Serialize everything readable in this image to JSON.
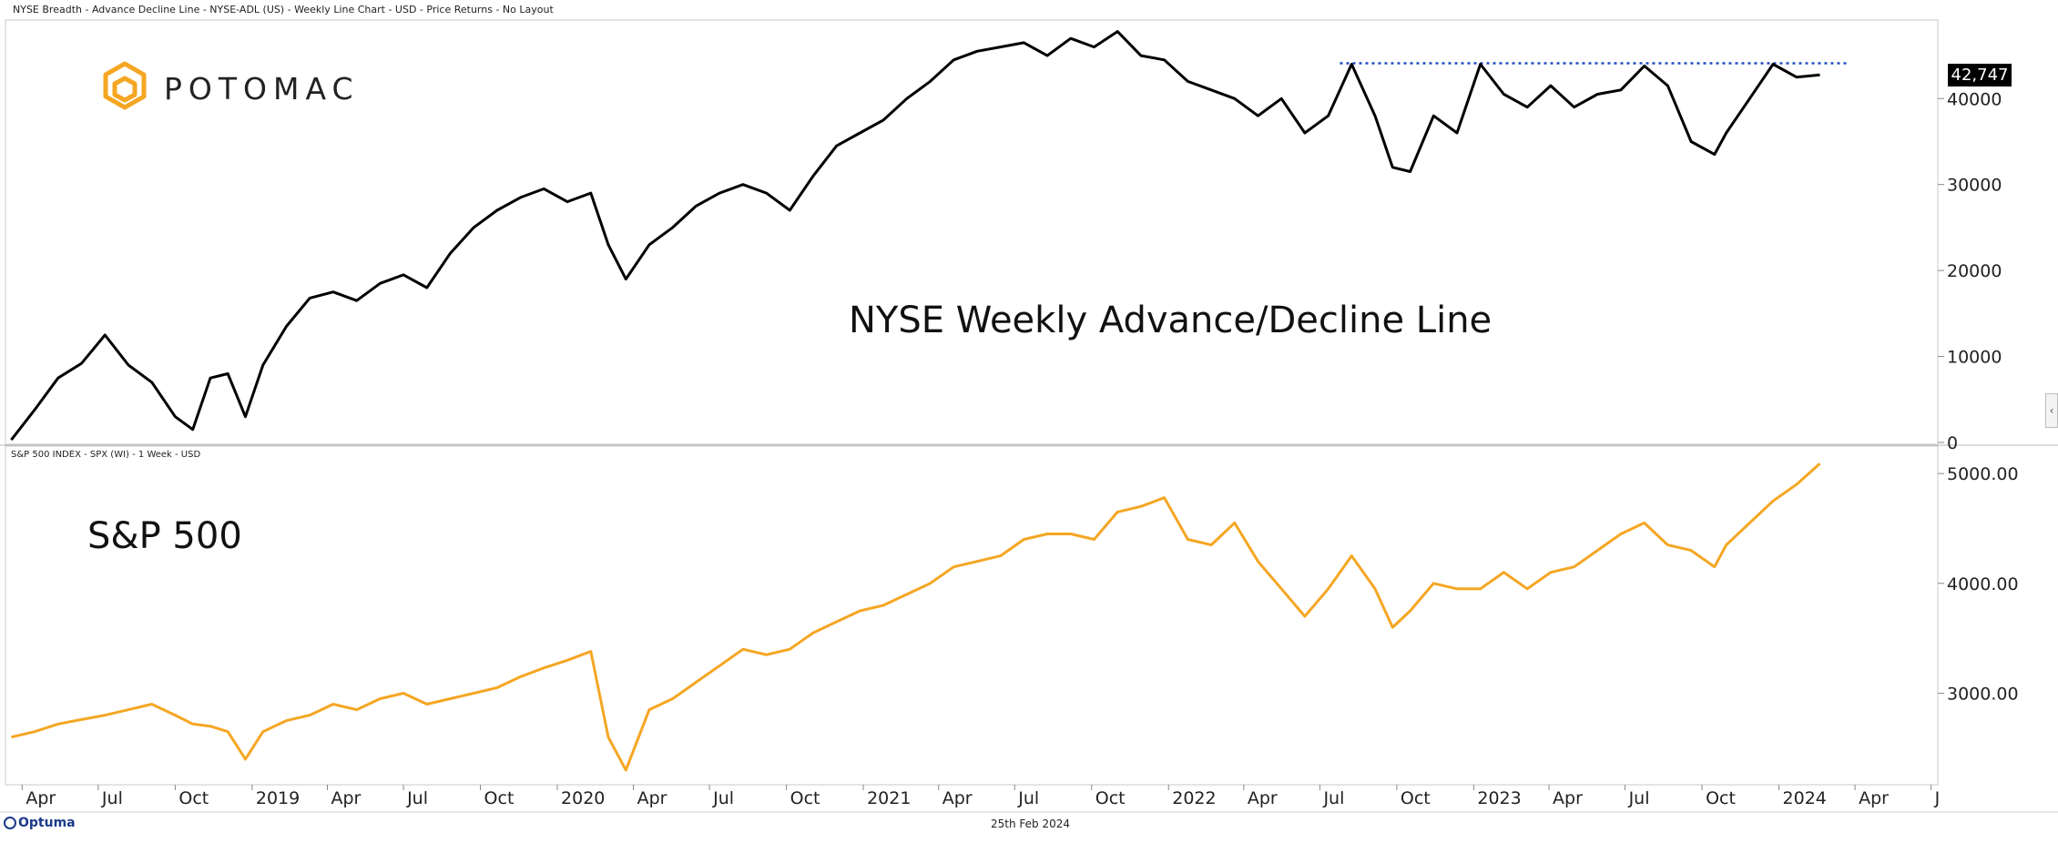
{
  "header": {
    "top_title": "NYSE Breadth - Advance Decline Line - NYSE-ADL (US) - Weekly Line Chart - USD - Price Returns - No Layout",
    "bottom_title": "S&P 500 INDEX - SPX (WI) - 1 Week - USD"
  },
  "brand": {
    "name": "POTOMAC",
    "logo_icon": "potomac-hexagon-logo",
    "color": "#F5A623"
  },
  "footer": {
    "date": "25th Feb 2024",
    "vendor": "Optuma"
  },
  "colors": {
    "adl_line": "#000000",
    "spx_line": "#F5A623",
    "resistance": "#1f4fbf",
    "badge_bg": "#000000"
  },
  "chart_data": [
    {
      "type": "line",
      "title": "NYSE Weekly Advance/Decline Line",
      "last_value_label": "42,747",
      "ylim": [
        0,
        48500
      ],
      "y_ticks": [
        "0",
        "10000",
        "20000",
        "30000",
        "40000"
      ],
      "y_tick_values": [
        0,
        10000,
        20000,
        30000,
        40000
      ],
      "resistance": {
        "value": 44100,
        "from": "2022-07-25",
        "to": "2024-03-25",
        "style": "dotted"
      },
      "x": [
        "2018-03-19",
        "2018-04-16",
        "2018-05-14",
        "2018-06-11",
        "2018-07-09",
        "2018-08-06",
        "2018-09-03",
        "2018-10-01",
        "2018-10-22",
        "2018-11-12",
        "2018-12-03",
        "2018-12-24",
        "2019-01-14",
        "2019-02-11",
        "2019-03-11",
        "2019-04-08",
        "2019-05-06",
        "2019-06-03",
        "2019-07-01",
        "2019-07-29",
        "2019-08-26",
        "2019-09-23",
        "2019-10-21",
        "2019-11-18",
        "2019-12-16",
        "2020-01-13",
        "2020-02-10",
        "2020-03-02",
        "2020-03-23",
        "2020-04-20",
        "2020-05-18",
        "2020-06-15",
        "2020-07-13",
        "2020-08-10",
        "2020-09-07",
        "2020-10-05",
        "2020-11-02",
        "2020-11-30",
        "2020-12-28",
        "2021-01-25",
        "2021-02-22",
        "2021-03-22",
        "2021-04-19",
        "2021-05-17",
        "2021-06-14",
        "2021-07-12",
        "2021-08-09",
        "2021-09-06",
        "2021-10-04",
        "2021-11-01",
        "2021-11-29",
        "2021-12-27",
        "2022-01-24",
        "2022-02-21",
        "2022-03-21",
        "2022-04-18",
        "2022-05-16",
        "2022-06-13",
        "2022-07-11",
        "2022-08-08",
        "2022-09-05",
        "2022-09-26",
        "2022-10-17",
        "2022-11-14",
        "2022-12-12",
        "2023-01-09",
        "2023-02-06",
        "2023-03-06",
        "2023-04-03",
        "2023-05-01",
        "2023-05-29",
        "2023-06-26",
        "2023-07-24",
        "2023-08-21",
        "2023-09-18",
        "2023-10-16",
        "2023-10-30",
        "2023-11-27",
        "2023-12-25",
        "2024-01-22",
        "2024-02-19"
      ],
      "y": [
        300,
        3800,
        7500,
        9200,
        12500,
        9000,
        7000,
        3000,
        1500,
        7500,
        8000,
        3000,
        9000,
        13500,
        16800,
        17500,
        16500,
        18500,
        19500,
        18000,
        22000,
        25000,
        27000,
        28500,
        29500,
        28000,
        29000,
        23000,
        19000,
        23000,
        25000,
        27500,
        29000,
        30000,
        29000,
        27000,
        31000,
        34500,
        36000,
        37500,
        40000,
        42000,
        44500,
        45500,
        46000,
        46500,
        45000,
        47000,
        46000,
        47800,
        45000,
        44500,
        42000,
        41000,
        40000,
        38000,
        40000,
        36000,
        38000,
        44000,
        38000,
        32000,
        31500,
        38000,
        36000,
        44000,
        40500,
        39000,
        41500,
        39000,
        40500,
        41000,
        43800,
        41500,
        35000,
        33500,
        36000,
        40000,
        44000,
        42500,
        42747
      ]
    },
    {
      "type": "line",
      "title": "S&P 500",
      "ylim": [
        2200,
        5200
      ],
      "y_ticks": [
        "3000.00",
        "4000.00",
        "5000.00"
      ],
      "y_tick_values": [
        3000,
        4000,
        5000
      ],
      "x": [
        "2018-03-19",
        "2018-04-16",
        "2018-05-14",
        "2018-06-11",
        "2018-07-09",
        "2018-08-06",
        "2018-09-03",
        "2018-10-01",
        "2018-10-22",
        "2018-11-12",
        "2018-12-03",
        "2018-12-24",
        "2019-01-14",
        "2019-02-11",
        "2019-03-11",
        "2019-04-08",
        "2019-05-06",
        "2019-06-03",
        "2019-07-01",
        "2019-07-29",
        "2019-08-26",
        "2019-09-23",
        "2019-10-21",
        "2019-11-18",
        "2019-12-16",
        "2020-01-13",
        "2020-02-10",
        "2020-03-02",
        "2020-03-23",
        "2020-04-20",
        "2020-05-18",
        "2020-06-15",
        "2020-07-13",
        "2020-08-10",
        "2020-09-07",
        "2020-10-05",
        "2020-11-02",
        "2020-11-30",
        "2020-12-28",
        "2021-01-25",
        "2021-02-22",
        "2021-03-22",
        "2021-04-19",
        "2021-05-17",
        "2021-06-14",
        "2021-07-12",
        "2021-08-09",
        "2021-09-06",
        "2021-10-04",
        "2021-11-01",
        "2021-11-29",
        "2021-12-27",
        "2022-01-24",
        "2022-02-21",
        "2022-03-21",
        "2022-04-18",
        "2022-05-16",
        "2022-06-13",
        "2022-07-11",
        "2022-08-08",
        "2022-09-05",
        "2022-09-26",
        "2022-10-17",
        "2022-11-14",
        "2022-12-12",
        "2023-01-09",
        "2023-02-06",
        "2023-03-06",
        "2023-04-03",
        "2023-05-01",
        "2023-05-29",
        "2023-06-26",
        "2023-07-24",
        "2023-08-21",
        "2023-09-18",
        "2023-10-16",
        "2023-10-30",
        "2023-11-27",
        "2023-12-25",
        "2024-01-22",
        "2024-02-19"
      ],
      "y": [
        2600,
        2650,
        2720,
        2760,
        2800,
        2850,
        2900,
        2800,
        2720,
        2700,
        2650,
        2400,
        2650,
        2750,
        2800,
        2900,
        2850,
        2950,
        3000,
        2900,
        2950,
        3000,
        3050,
        3150,
        3230,
        3300,
        3380,
        2600,
        2300,
        2850,
        2950,
        3100,
        3250,
        3400,
        3350,
        3400,
        3550,
        3650,
        3750,
        3800,
        3900,
        4000,
        4150,
        4200,
        4250,
        4400,
        4450,
        4450,
        4400,
        4650,
        4700,
        4780,
        4400,
        4350,
        4550,
        4200,
        3950,
        3700,
        3950,
        4250,
        3950,
        3600,
        3750,
        4000,
        3950,
        3950,
        4100,
        3950,
        4100,
        4150,
        4300,
        4450,
        4550,
        4350,
        4300,
        4150,
        4350,
        4550,
        4750,
        4900,
        5090
      ]
    }
  ],
  "x_axis": {
    "labels": [
      "Apr",
      "Jul",
      "Oct",
      "2019",
      "Apr",
      "Jul",
      "Oct",
      "2020",
      "Apr",
      "Jul",
      "Oct",
      "2021",
      "Apr",
      "Jul",
      "Oct",
      "2022",
      "Apr",
      "Jul",
      "Oct",
      "2023",
      "Apr",
      "Jul",
      "Oct",
      "2024",
      "Apr",
      "J"
    ],
    "dates": [
      "2018-04-01",
      "2018-07-01",
      "2018-10-01",
      "2019-01-01",
      "2019-04-01",
      "2019-07-01",
      "2019-10-01",
      "2020-01-01",
      "2020-04-01",
      "2020-07-01",
      "2020-10-01",
      "2021-01-01",
      "2021-04-01",
      "2021-07-01",
      "2021-10-01",
      "2022-01-01",
      "2022-04-01",
      "2022-07-01",
      "2022-10-01",
      "2023-01-01",
      "2023-04-01",
      "2023-07-01",
      "2023-10-01",
      "2024-01-01",
      "2024-04-01",
      "2024-07-01"
    ]
  }
}
